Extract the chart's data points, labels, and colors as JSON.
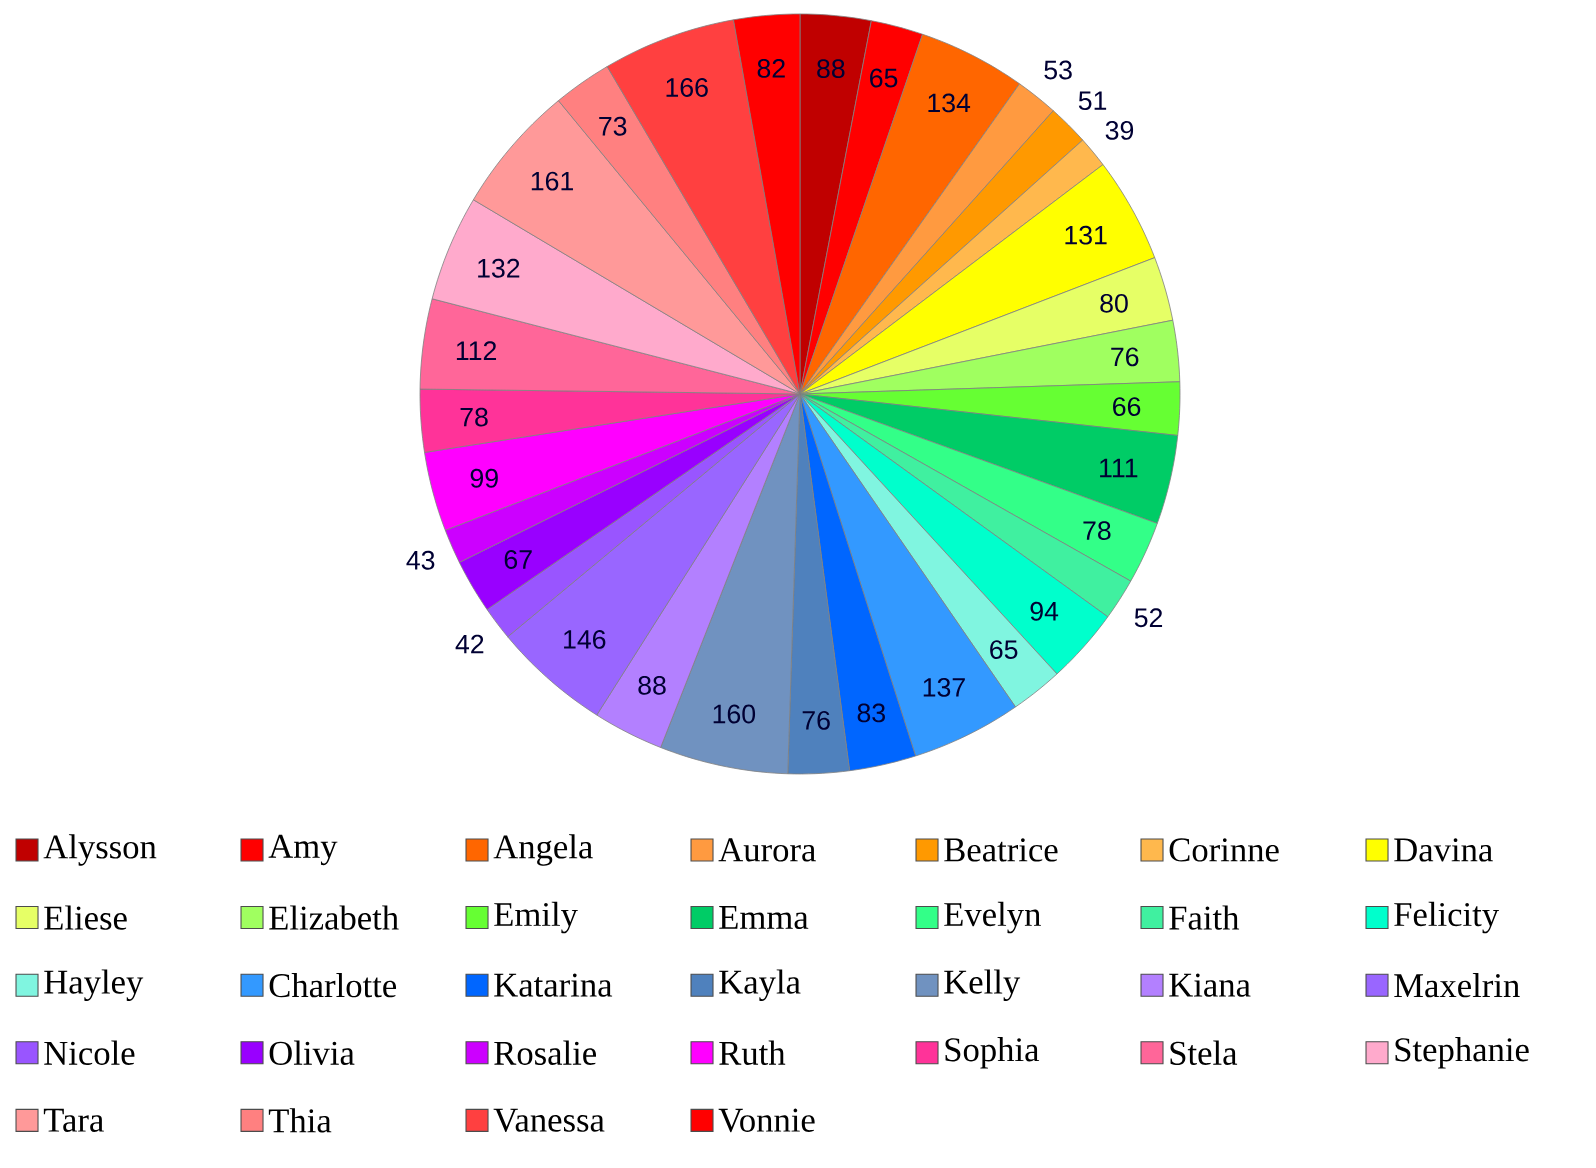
{
  "chart_data": {
    "type": "pie",
    "categories": [
      "Alysson",
      "Amy",
      "Angela",
      "Aurora",
      "Beatrice",
      "Corinne",
      "Davina",
      "Eliese",
      "Elizabeth",
      "Emily",
      "Emma",
      "Evelyn",
      "Faith",
      "Felicity",
      "Hayley",
      "Charlotte",
      "Katarina",
      "Kayla",
      "Kelly",
      "Kiana",
      "Maxelrin",
      "Nicole",
      "Olivia",
      "Rosalie",
      "Ruth",
      "Sophia",
      "Stela",
      "Stephanie",
      "Tara",
      "Thia",
      "Vanessa",
      "Vonnie"
    ],
    "values": [
      88,
      65,
      134,
      53,
      51,
      39,
      131,
      80,
      76,
      66,
      111,
      78,
      52,
      94,
      65,
      137,
      83,
      76,
      160,
      88,
      146,
      42,
      67,
      43,
      99,
      78,
      112,
      132,
      161,
      73,
      166,
      82
    ],
    "colors": [
      "#c00000",
      "#ff0000",
      "#ff6600",
      "#ff9a40",
      "#ff9900",
      "#ffb84d",
      "#ffff00",
      "#e6ff66",
      "#a0ff60",
      "#66ff33",
      "#00cc66",
      "#33ff88",
      "#40f0a0",
      "#00ffcc",
      "#80f5e0",
      "#3399ff",
      "#0066ff",
      "#4f81bd",
      "#7092c0",
      "#b380ff",
      "#9966ff",
      "#9955ff",
      "#9900ff",
      "#cc00ff",
      "#ff00ff",
      "#ff3399",
      "#ff6699",
      "#ffaacc",
      "#ff9999",
      "#ff8080",
      "#ff4040",
      "#ff0000"
    ],
    "data_labels": true,
    "legend": "bottom"
  }
}
